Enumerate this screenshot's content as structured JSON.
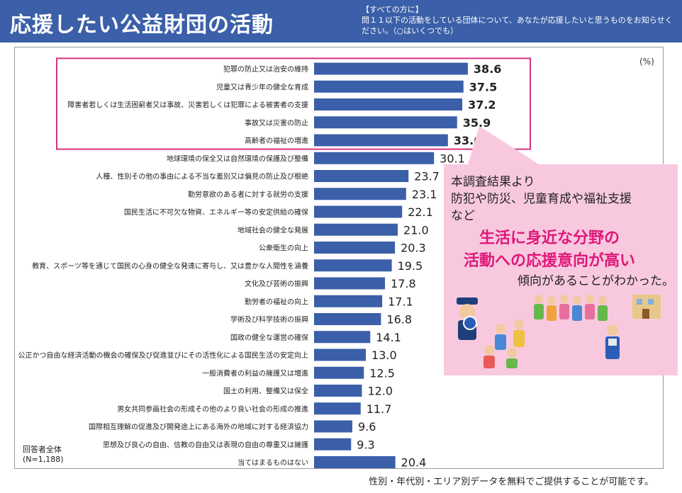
{
  "header": {
    "title": "応援したい公益財団の活動",
    "question_line1": "【すべての方に】",
    "question_line2": "問１１以下の活動をしている団体について、あなたが応援したいと思うものをお知らせください。（○はいくつでも）"
  },
  "unit_label": "(%)",
  "sample": {
    "line1": "回答者全体",
    "line2": "(N=1,188)"
  },
  "callout": {
    "line1": "本調査結果より",
    "line2": "防犯や防災、児童育成や福祉支援",
    "line3": "など",
    "highlight1": "生活に身近な分野の",
    "highlight2": "活動への応援意向が高い",
    "line4": "傾向があることがわかった。"
  },
  "footnote": "性別・年代別・エリア別データを無料でご提供することが可能です。",
  "colors": {
    "header": "#3b5fa8",
    "bar": "#3b5fa8",
    "highlight_box": "#d6337f",
    "callout_bg": "#f8c9de",
    "callout_text": "#e0177a"
  },
  "chart_data": {
    "type": "bar",
    "orientation": "horizontal",
    "xlim": [
      0,
      100
    ],
    "highlighted_top": 5,
    "categories": [
      "犯罪の防止又は治安の維持",
      "児童又は青少年の健全な育成",
      "障害者若しくは生活困窮者又は事故、災害若しくは犯罪による被害者の支援",
      "事故又は災害の防止",
      "高齢者の福祉の増進",
      "地球環境の保全又は自然環境の保護及び整備",
      "人種、性別その他の事由による不当な差別又は偏見の防止及び根絶",
      "勤労意欲のある者に対する就労の支援",
      "国民生活に不可欠な物資、エネルギー等の安定供給の確保",
      "地域社会の健全な発展",
      "公衆衛生の向上",
      "教育、スポーツ等を通じて国民の心身の健全な発達に寄与し、又は豊かな人間性を涵養",
      "文化及び芸術の振興",
      "勤労者の福祉の向上",
      "学術及び科学技術の振興",
      "国政の健全な運営の確保",
      "公正かつ自由な経済活動の機会の確保及び促進並びにその活性化による国民生活の安定向上",
      "一般消費者の利益の擁護又は増進",
      "国土の利用、整備又は保全",
      "男女共同参画社会の形成その他のより良い社会の形成の推進",
      "国際相互理解の促進及び開発途上にある海外の地域に対する経済協力",
      "思想及び良心の自由、信教の自由又は表現の自由の尊重又は擁護",
      "当てはまるものはない"
    ],
    "values": [
      38.6,
      37.5,
      37.2,
      35.9,
      33.6,
      30.1,
      23.7,
      23.1,
      22.1,
      21.0,
      20.3,
      19.5,
      17.8,
      17.1,
      16.8,
      14.1,
      13.0,
      12.5,
      12.0,
      11.7,
      9.6,
      9.3,
      20.4
    ],
    "value_labels": [
      "38.6",
      "37.5",
      "37.2",
      "35.9",
      "33.6",
      "30.1",
      "23.7",
      "23.1",
      "22.1",
      "21.0",
      "20.3",
      "19.5",
      "17.8",
      "17.1",
      "16.8",
      "14.1",
      "13.0",
      "12.5",
      "12.0",
      "11.7",
      "9.6",
      "9.3",
      "20.4"
    ]
  }
}
